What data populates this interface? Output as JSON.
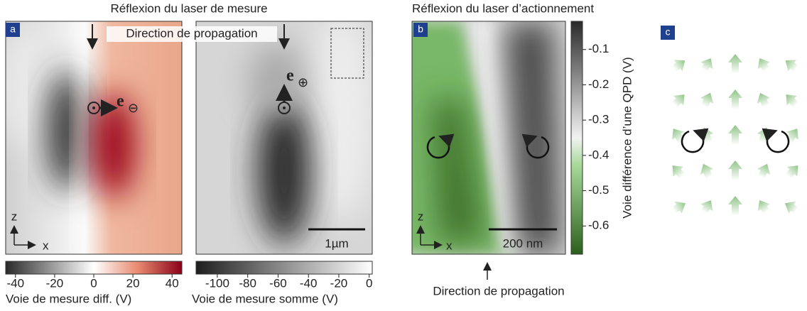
{
  "panel_a": {
    "label": "a",
    "title": "Réflexion du laser de mesure",
    "annotation": "Direction de propagation",
    "vector_left": {
      "symbol": "e",
      "subscript": "⊖"
    },
    "vector_right": {
      "symbol": "e",
      "subscript": "⊕"
    },
    "axis_z": "z",
    "axis_x": "x",
    "scale_bar": "1µm",
    "colorbar_diff": {
      "label": "Voie de mesure diff. (V)",
      "xlim": [
        -45,
        45
      ],
      "xticks": [
        -40,
        -20,
        0,
        20,
        40
      ]
    },
    "colorbar_sum": {
      "label": "Voie de mesure somme (V)",
      "xlim": [
        -114,
        2
      ],
      "xticks": [
        -100,
        -80,
        -60,
        -40,
        -20,
        0
      ]
    }
  },
  "panel_b": {
    "label": "b",
    "title": "Réflexion du laser d’actionnement",
    "annotation": "Direction de propagation",
    "axis_z": "z",
    "axis_x": "x",
    "scale_bar": "200 nm",
    "colorbar": {
      "label": "Voie différence d’une QPD (V)",
      "ylim": [
        -0.68,
        -0.02
      ],
      "yticks": [
        -0.1,
        -0.2,
        -0.3,
        -0.4,
        -0.5,
        -0.6
      ]
    }
  },
  "panel_c": {
    "label": "c"
  }
}
